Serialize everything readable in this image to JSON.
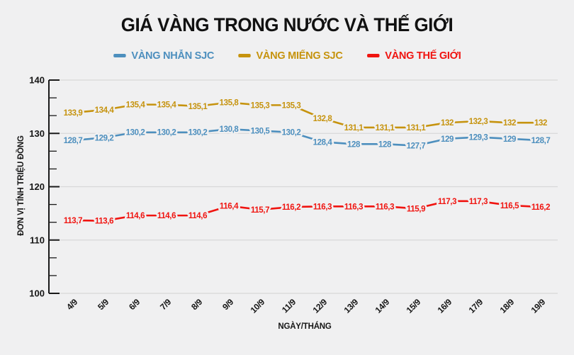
{
  "title": "GIÁ VÀNG TRONG NƯỚC VÀ THẾ GIỚI",
  "colors": {
    "background": "#f0f0f1",
    "grid": "#d8d8d8",
    "axis": "#1a1a1a",
    "text": "#111111"
  },
  "chart_data": {
    "type": "line",
    "title": "GIÁ VÀNG TRONG NƯỚC VÀ THẾ GIỚI",
    "xlabel": "NGÀY/THÁNG",
    "ylabel": "ĐƠN VỊ TÍNH TRIỆU ĐỒNG",
    "ylim": [
      100,
      140
    ],
    "y_ticks": [
      100,
      110,
      120,
      130,
      140
    ],
    "grid": "horizontal",
    "legend_position": "top",
    "decimal_separator": ",",
    "categories": [
      "4/9",
      "5/9",
      "6/9",
      "7/9",
      "8/9",
      "9/9",
      "10/9",
      "11/9",
      "12/9",
      "13/9",
      "14/9",
      "15/9",
      "16/9",
      "17/9",
      "18/9",
      "19/9"
    ],
    "series": [
      {
        "name": "VÀNG NHẪN SJC",
        "color": "#4d8fbe",
        "values": [
          128.7,
          129.2,
          130.2,
          130.2,
          130.2,
          130.8,
          130.5,
          130.2,
          128.4,
          128,
          128,
          127.7,
          129,
          129.3,
          129,
          128.7
        ]
      },
      {
        "name": "VÀNG MIẾNG SJC",
        "color": "#c6930e",
        "values": [
          133.9,
          134.4,
          135.4,
          135.4,
          135.1,
          135.8,
          135.3,
          135.3,
          132.8,
          131.1,
          131.1,
          131.1,
          132,
          132.3,
          132,
          132
        ]
      },
      {
        "name": "VÀNG THẾ GIỚI",
        "color": "#f01410",
        "values": [
          113.7,
          113.6,
          114.6,
          114.6,
          114.6,
          116.4,
          115.7,
          116.2,
          116.3,
          116.3,
          116.3,
          115.9,
          117.3,
          117.3,
          116.5,
          116.2
        ]
      }
    ]
  }
}
